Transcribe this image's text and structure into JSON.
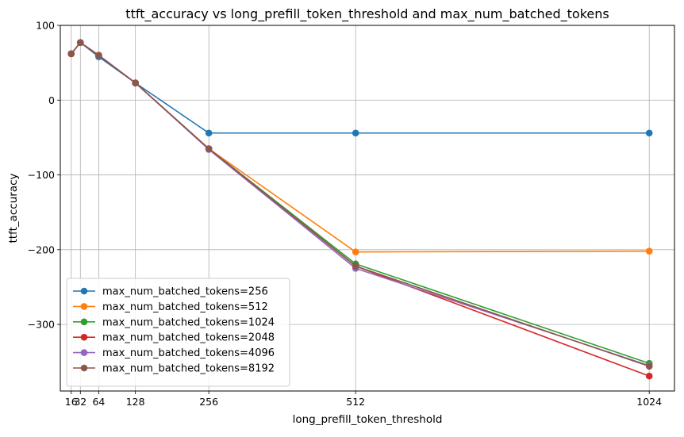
{
  "chart_data": {
    "type": "line",
    "title": "ttft_accuracy vs long_prefill_token_threshold and max_num_batched_tokens",
    "xlabel": "long_prefill_token_threshold",
    "ylabel": "ttft_accuracy",
    "x": [
      16,
      32,
      64,
      128,
      256,
      512,
      1024
    ],
    "x_ticks": [
      16,
      32,
      64,
      128,
      256,
      512,
      1024
    ],
    "x_tick_labels": [
      "16",
      "32",
      "64",
      "128",
      "256",
      "512",
      "1024"
    ],
    "xlim": [
      -3,
      1068
    ],
    "ylim": [
      -389,
      100
    ],
    "y_ticks": [
      100,
      0,
      -100,
      -200,
      -300
    ],
    "y_tick_labels": [
      "100",
      "0",
      "−100",
      "−200",
      "−300"
    ],
    "grid": true,
    "legend_position": "lower-left",
    "series": [
      {
        "name": "max_num_batched_tokens=256",
        "color": "#1f77b4",
        "values": [
          62,
          77,
          58,
          23,
          -44,
          -44,
          -44
        ]
      },
      {
        "name": "max_num_batched_tokens=512",
        "color": "#ff7f0e",
        "values": [
          62,
          77,
          60,
          23,
          -65,
          -203,
          -202
        ]
      },
      {
        "name": "max_num_batched_tokens=1024",
        "color": "#2ca02c",
        "values": [
          62,
          77,
          60,
          23,
          -65,
          -219,
          -352
        ]
      },
      {
        "name": "max_num_batched_tokens=2048",
        "color": "#d62728",
        "values": [
          62,
          77,
          60,
          23,
          -65,
          -222,
          -369
        ]
      },
      {
        "name": "max_num_batched_tokens=4096",
        "color": "#9467bd",
        "values": [
          62,
          77,
          60,
          23,
          -66,
          -225,
          -355
        ]
      },
      {
        "name": "max_num_batched_tokens=8192",
        "color": "#8c564b",
        "values": [
          62,
          77,
          60,
          23,
          -65,
          -222,
          -356
        ]
      }
    ]
  }
}
